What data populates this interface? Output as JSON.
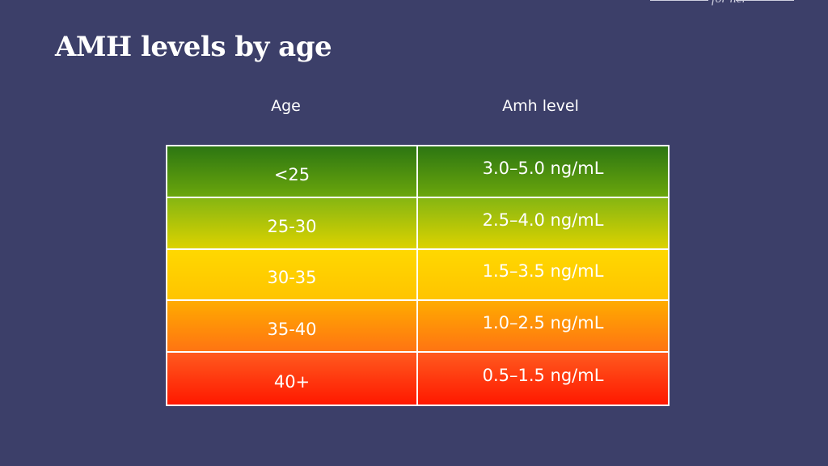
{
  "brand": "for her",
  "header": {
    "title": "AMH levels by age"
  },
  "table": {
    "headers": [
      "Age",
      "Amh level"
    ],
    "rows": [
      [
        "<25",
        "3.0–5.0 ng/mL"
      ],
      [
        "25-30",
        "2.5–4.0 ng/mL"
      ],
      [
        "30-35",
        "1.5–3.5 ng/mL"
      ],
      [
        "35-40",
        "1.0–2.5 ng/mL"
      ],
      [
        "40+",
        "0.5–1.5 ng/mL"
      ]
    ]
  }
}
